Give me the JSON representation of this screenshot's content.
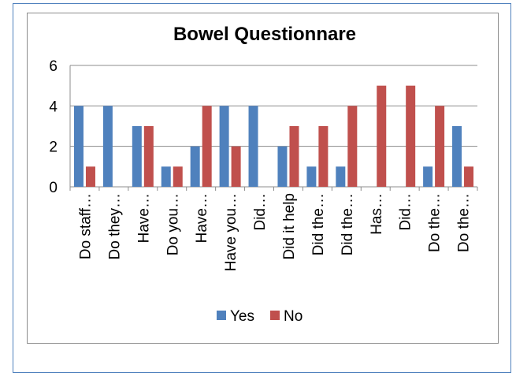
{
  "chart_data": {
    "type": "bar",
    "title": "Bowel Questionnare",
    "categories": [
      "Do staff…",
      "Do they…",
      "Have…",
      "Do you…",
      "Have…",
      "Have you…",
      "Did…",
      "Did it help",
      "Did the…",
      "Did the…",
      "Has…",
      "Did…",
      "Do the…",
      "Do the…"
    ],
    "series": [
      {
        "name": "Yes",
        "color": "#4f81bd",
        "values": [
          4,
          4,
          3,
          1,
          2,
          4,
          4,
          2,
          1,
          1,
          0,
          0,
          1,
          3
        ]
      },
      {
        "name": "No",
        "color": "#c0504d",
        "values": [
          1,
          0,
          3,
          1,
          4,
          2,
          0,
          3,
          3,
          4,
          5,
          5,
          4,
          1
        ]
      }
    ],
    "y_ticks": [
      "0",
      "2",
      "4",
      "6"
    ],
    "ylim": [
      0,
      6
    ],
    "grid": true,
    "legend_position": "bottom"
  }
}
